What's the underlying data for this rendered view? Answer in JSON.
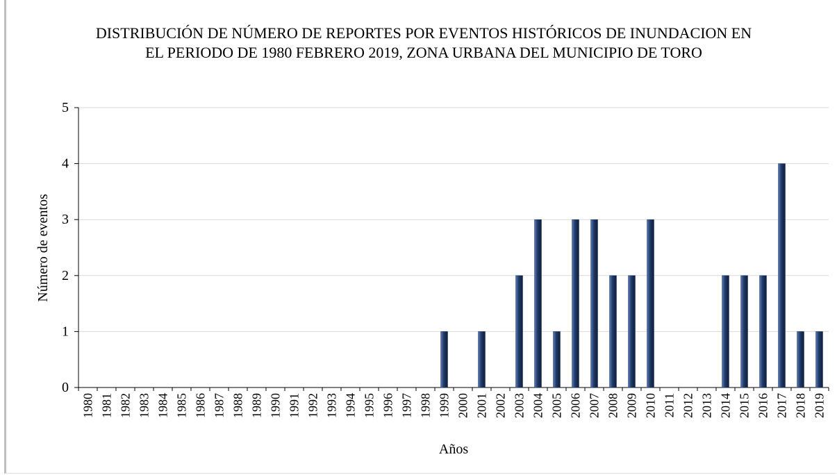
{
  "chart_data": {
    "type": "bar",
    "title": "DISTRIBUCIÓN DE NÚMERO DE REPORTES POR EVENTOS HISTÓRICOS DE INUNDACION EN EL PERIODO DE 1980 FEBRERO 2019, ZONA URBANA DEL MUNICIPIO DE TORO",
    "x_label": "Años",
    "y_label": "Número de eventos",
    "categories": [
      "1980",
      "1981",
      "1982",
      "1983",
      "1984",
      "1985",
      "1986",
      "1987",
      "1988",
      "1989",
      "1990",
      "1991",
      "1992",
      "1993",
      "1994",
      "1995",
      "1996",
      "1997",
      "1998",
      "1999",
      "2000",
      "2001",
      "2002",
      "2003",
      "2004",
      "2005",
      "2006",
      "2007",
      "2008",
      "2009",
      "2010",
      "2011",
      "2012",
      "2013",
      "2014",
      "2015",
      "2016",
      "2017",
      "2018",
      "2019"
    ],
    "values": [
      0,
      0,
      0,
      0,
      0,
      0,
      0,
      0,
      0,
      0,
      0,
      0,
      0,
      0,
      0,
      0,
      0,
      0,
      0,
      1,
      0,
      1,
      0,
      2,
      3,
      1,
      3,
      3,
      2,
      2,
      3,
      0,
      0,
      0,
      2,
      2,
      2,
      4,
      1,
      1
    ],
    "color": "#1f3864",
    "ylim": [
      0,
      5
    ],
    "yticks": [
      0,
      1,
      2,
      3,
      4,
      5
    ],
    "grid": true
  }
}
